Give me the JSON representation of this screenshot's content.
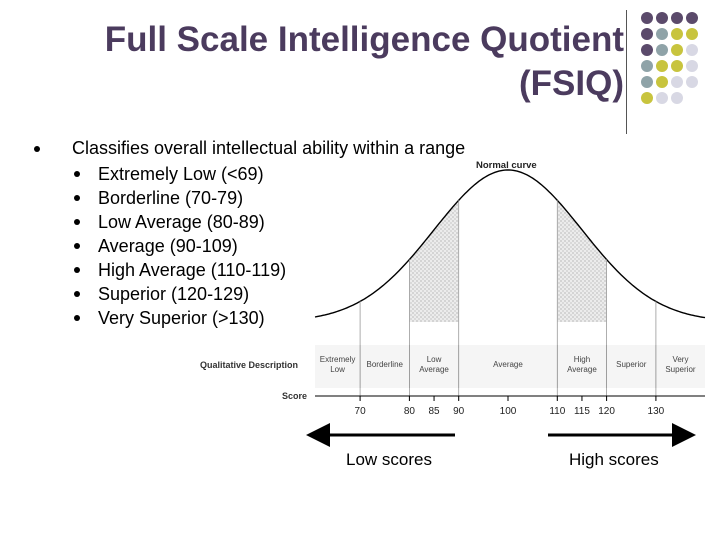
{
  "slide": {
    "title_line1": "Full Scale Intelligence Quotient",
    "title_line2": "(FSIQ)",
    "main_bullet": "Classifies overall intellectual ability within a range",
    "sub_bullets": [
      "Extremely Low (<69)",
      "Borderline (70-79)",
      "Low Average (80-89)",
      "Average (90-109)",
      "High Average (110-119)",
      "Superior (120-129)",
      "Very Superior (>130)"
    ]
  },
  "figure": {
    "curve_title": "Normal curve",
    "row_label_desc": "Qualitative Description",
    "row_label_score": "Score",
    "categories": [
      {
        "lines": [
          "Extremely",
          "Low"
        ]
      },
      {
        "lines": [
          "Borderline"
        ]
      },
      {
        "lines": [
          "Low",
          "Average"
        ]
      },
      {
        "lines": [
          "Average"
        ]
      },
      {
        "lines": [
          "High",
          "Average"
        ]
      },
      {
        "lines": [
          "Superior"
        ]
      },
      {
        "lines": [
          "Very",
          "Superior"
        ]
      }
    ],
    "scores": [
      70,
      80,
      85,
      90,
      100,
      110,
      115,
      120,
      130
    ],
    "shaded_ranges": [
      [
        80,
        90
      ],
      [
        110,
        120
      ]
    ],
    "low_label": "Low scores",
    "high_label": "High scores"
  },
  "decor": {
    "dot_colors": [
      "#5b4a6b",
      "#8fa3a8",
      "#c8c43e",
      "#d8d8e4"
    ],
    "title_color": "#4b3b5e"
  }
}
